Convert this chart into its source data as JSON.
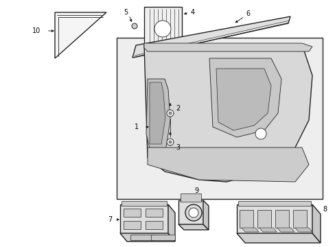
{
  "bg_color": "#ffffff",
  "line_color": "#222222",
  "label_color": "#000000",
  "figsize": [
    4.89,
    3.6
  ],
  "dpi": 100
}
